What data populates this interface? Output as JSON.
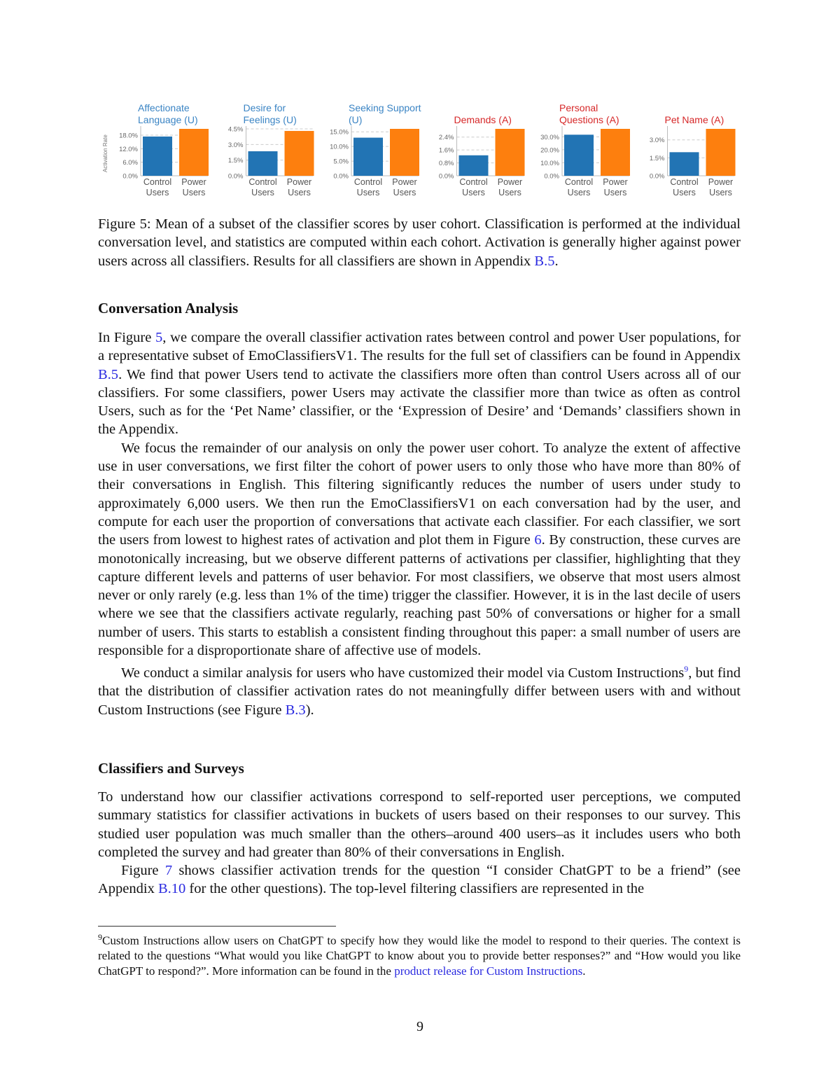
{
  "chart_data": [
    {
      "type": "bar",
      "title": "Affectionate Language (U)",
      "title_lines": [
        "Affectionate",
        "Language (U)"
      ],
      "category": "U",
      "ylabel": "Activation Rate",
      "categories": [
        "Control Users",
        "Power Users"
      ],
      "values": [
        17.4,
        20.8
      ],
      "yticks": [
        "0.0%",
        "6.0%",
        "12.0%",
        "18.0%"
      ],
      "tickvals": [
        0,
        6,
        12,
        18
      ],
      "ylim": [
        0,
        20.8
      ]
    },
    {
      "type": "bar",
      "title": "Desire for Feelings (U)",
      "title_lines": [
        "Desire for",
        "Feelings (U)"
      ],
      "category": "U",
      "ylabel": "",
      "categories": [
        "Control Users",
        "Power Users"
      ],
      "values": [
        2.35,
        4.3
      ],
      "yticks": [
        "0.0%",
        "1.5%",
        "3.0%",
        "4.5%"
      ],
      "tickvals": [
        0,
        1.5,
        3,
        4.5
      ],
      "ylim": [
        0,
        4.5
      ]
    },
    {
      "type": "bar",
      "title": "Seeking Support (U)",
      "title_lines": [
        "Seeking Support",
        "(U)"
      ],
      "category": "U",
      "ylabel": "",
      "categories": [
        "Control Users",
        "Power Users"
      ],
      "values": [
        13.0,
        16.0
      ],
      "yticks": [
        "0.0%",
        "5.0%",
        "10.0%",
        "15.0%"
      ],
      "tickvals": [
        0,
        5,
        10,
        15
      ],
      "ylim": [
        0,
        16.0
      ]
    },
    {
      "type": "bar",
      "title": "Demands (A)",
      "title_lines": [
        "",
        "Demands (A)"
      ],
      "category": "A",
      "ylabel": "",
      "categories": [
        "Control Users",
        "Power Users"
      ],
      "values": [
        1.27,
        2.91
      ],
      "yticks": [
        "0.0%",
        "0.8%",
        "1.6%",
        "2.4%"
      ],
      "tickvals": [
        0,
        0.8,
        1.6,
        2.4
      ],
      "ylim": [
        0,
        2.91
      ]
    },
    {
      "type": "bar",
      "title": "Personal Questions (A)",
      "title_lines": [
        "Personal",
        "Questions (A)"
      ],
      "category": "A",
      "ylabel": "",
      "categories": [
        "Control Users",
        "Power Users"
      ],
      "values": [
        31.6,
        36.1
      ],
      "yticks": [
        "0.0%",
        "10.0%",
        "20.0%",
        "30.0%"
      ],
      "tickvals": [
        0,
        10,
        20,
        30
      ],
      "ylim": [
        0,
        36.1
      ]
    },
    {
      "type": "bar",
      "title": "Pet Name (A)",
      "title_lines": [
        "",
        "Pet Name (A)"
      ],
      "category": "A",
      "ylabel": "",
      "categories": [
        "Control Users",
        "Power Users"
      ],
      "values": [
        1.97,
        3.92
      ],
      "yticks": [
        "0.0%",
        "1.5%",
        "3.0%"
      ],
      "tickvals": [
        0,
        1.5,
        3
      ],
      "ylim": [
        0,
        3.92
      ]
    }
  ],
  "colors": {
    "control": "#2274b4",
    "power": "#fd7f0e",
    "title_U": "#3a84c4",
    "title_A": "#d62728",
    "link": "#2a2ae0"
  },
  "caption": {
    "label": "Figure 5:",
    "text": " Mean of a subset of the classifier scores by user cohort. Classification is performed at the individual conversation level, and statistics are computed within each cohort. Activation is generally higher against power users across all classifiers. Results for all classifiers are shown in Appendix ",
    "ref": "B.5",
    "end": "."
  },
  "sec1": {
    "title": "Conversation Analysis",
    "p1": [
      "In Figure ",
      "5",
      ", we compare the overall classifier activation rates between control and power User populations, for a representative subset of EmoClassifiersV1. The results for the full set of classifiers can be found in Appendix ",
      "B.5",
      ". We find that power Users tend to activate the classifiers more often than control Users across all of our classifiers. For some classifiers, power Users may activate the classifier more than twice as often as control Users, such as for the ‘Pet Name’ classifier, or the ‘Expression of Desire’ and ‘Demands’ classifiers shown in the Appendix."
    ],
    "p2": [
      "We focus the remainder of our analysis on only the power user cohort. To analyze the extent of affective use in user conversations, we first filter the cohort of power users to only those who have more than 80% of their conversations in English. This filtering significantly reduces the number of users under study to approximately 6,000 users. We then run the EmoClassifiersV1 on each conversation had by the user, and compute for each user the proportion of conversations that activate each classifier. For each classifier, we sort the users from lowest to highest rates of activation and plot them in Figure ",
      "6",
      ". By construction, these curves are monotonically increasing, but we observe different patterns of activations per classifier, highlighting that they capture different levels and patterns of user behavior. For most classifiers, we observe that most users almost never or only rarely (e.g. less than 1% of the time) trigger the classifier. However, it is in the last decile of users where we see that the classifiers activate regularly, reaching past 50% of conversations or higher for a small number of users. This starts to establish a consistent finding throughout this paper: a small number of users are responsible for a disproportionate share of affective use of models."
    ],
    "p3": [
      "We conduct a similar analysis for users who have customized their model via Custom Instructions",
      "9",
      ", but find that the distribution of classifier activation rates do not meaningfully differ between users with and without Custom Instructions (see Figure ",
      "B.3",
      ")."
    ]
  },
  "sec2": {
    "title": "Classifiers and Surveys",
    "p1": "To understand how our classifier activations correspond to self-reported user perceptions, we computed summary statistics for classifier activations in buckets of users based on their responses to our survey. This studied user population was much smaller than the others–around 400 users–as it includes users who both completed the survey and had greater than 80% of their conversations in English.",
    "p2": [
      "Figure ",
      "7",
      " shows classifier activation trends for the question “I consider ChatGPT to be a friend” (see Appendix ",
      "B.10",
      " for the other questions). The top-level filtering classifiers are represented in the"
    ]
  },
  "footnote": {
    "num": "9",
    "text": "Custom Instructions allow users on ChatGPT to specify how they would like the model to respond to their queries. The context is related to the questions “What would you like ChatGPT to know about you to provide better responses?” and “How would you like ChatGPT to respond?”. More information can be found in the ",
    "link": "product release for Custom Instructions",
    "end": "."
  },
  "page_number": "9"
}
